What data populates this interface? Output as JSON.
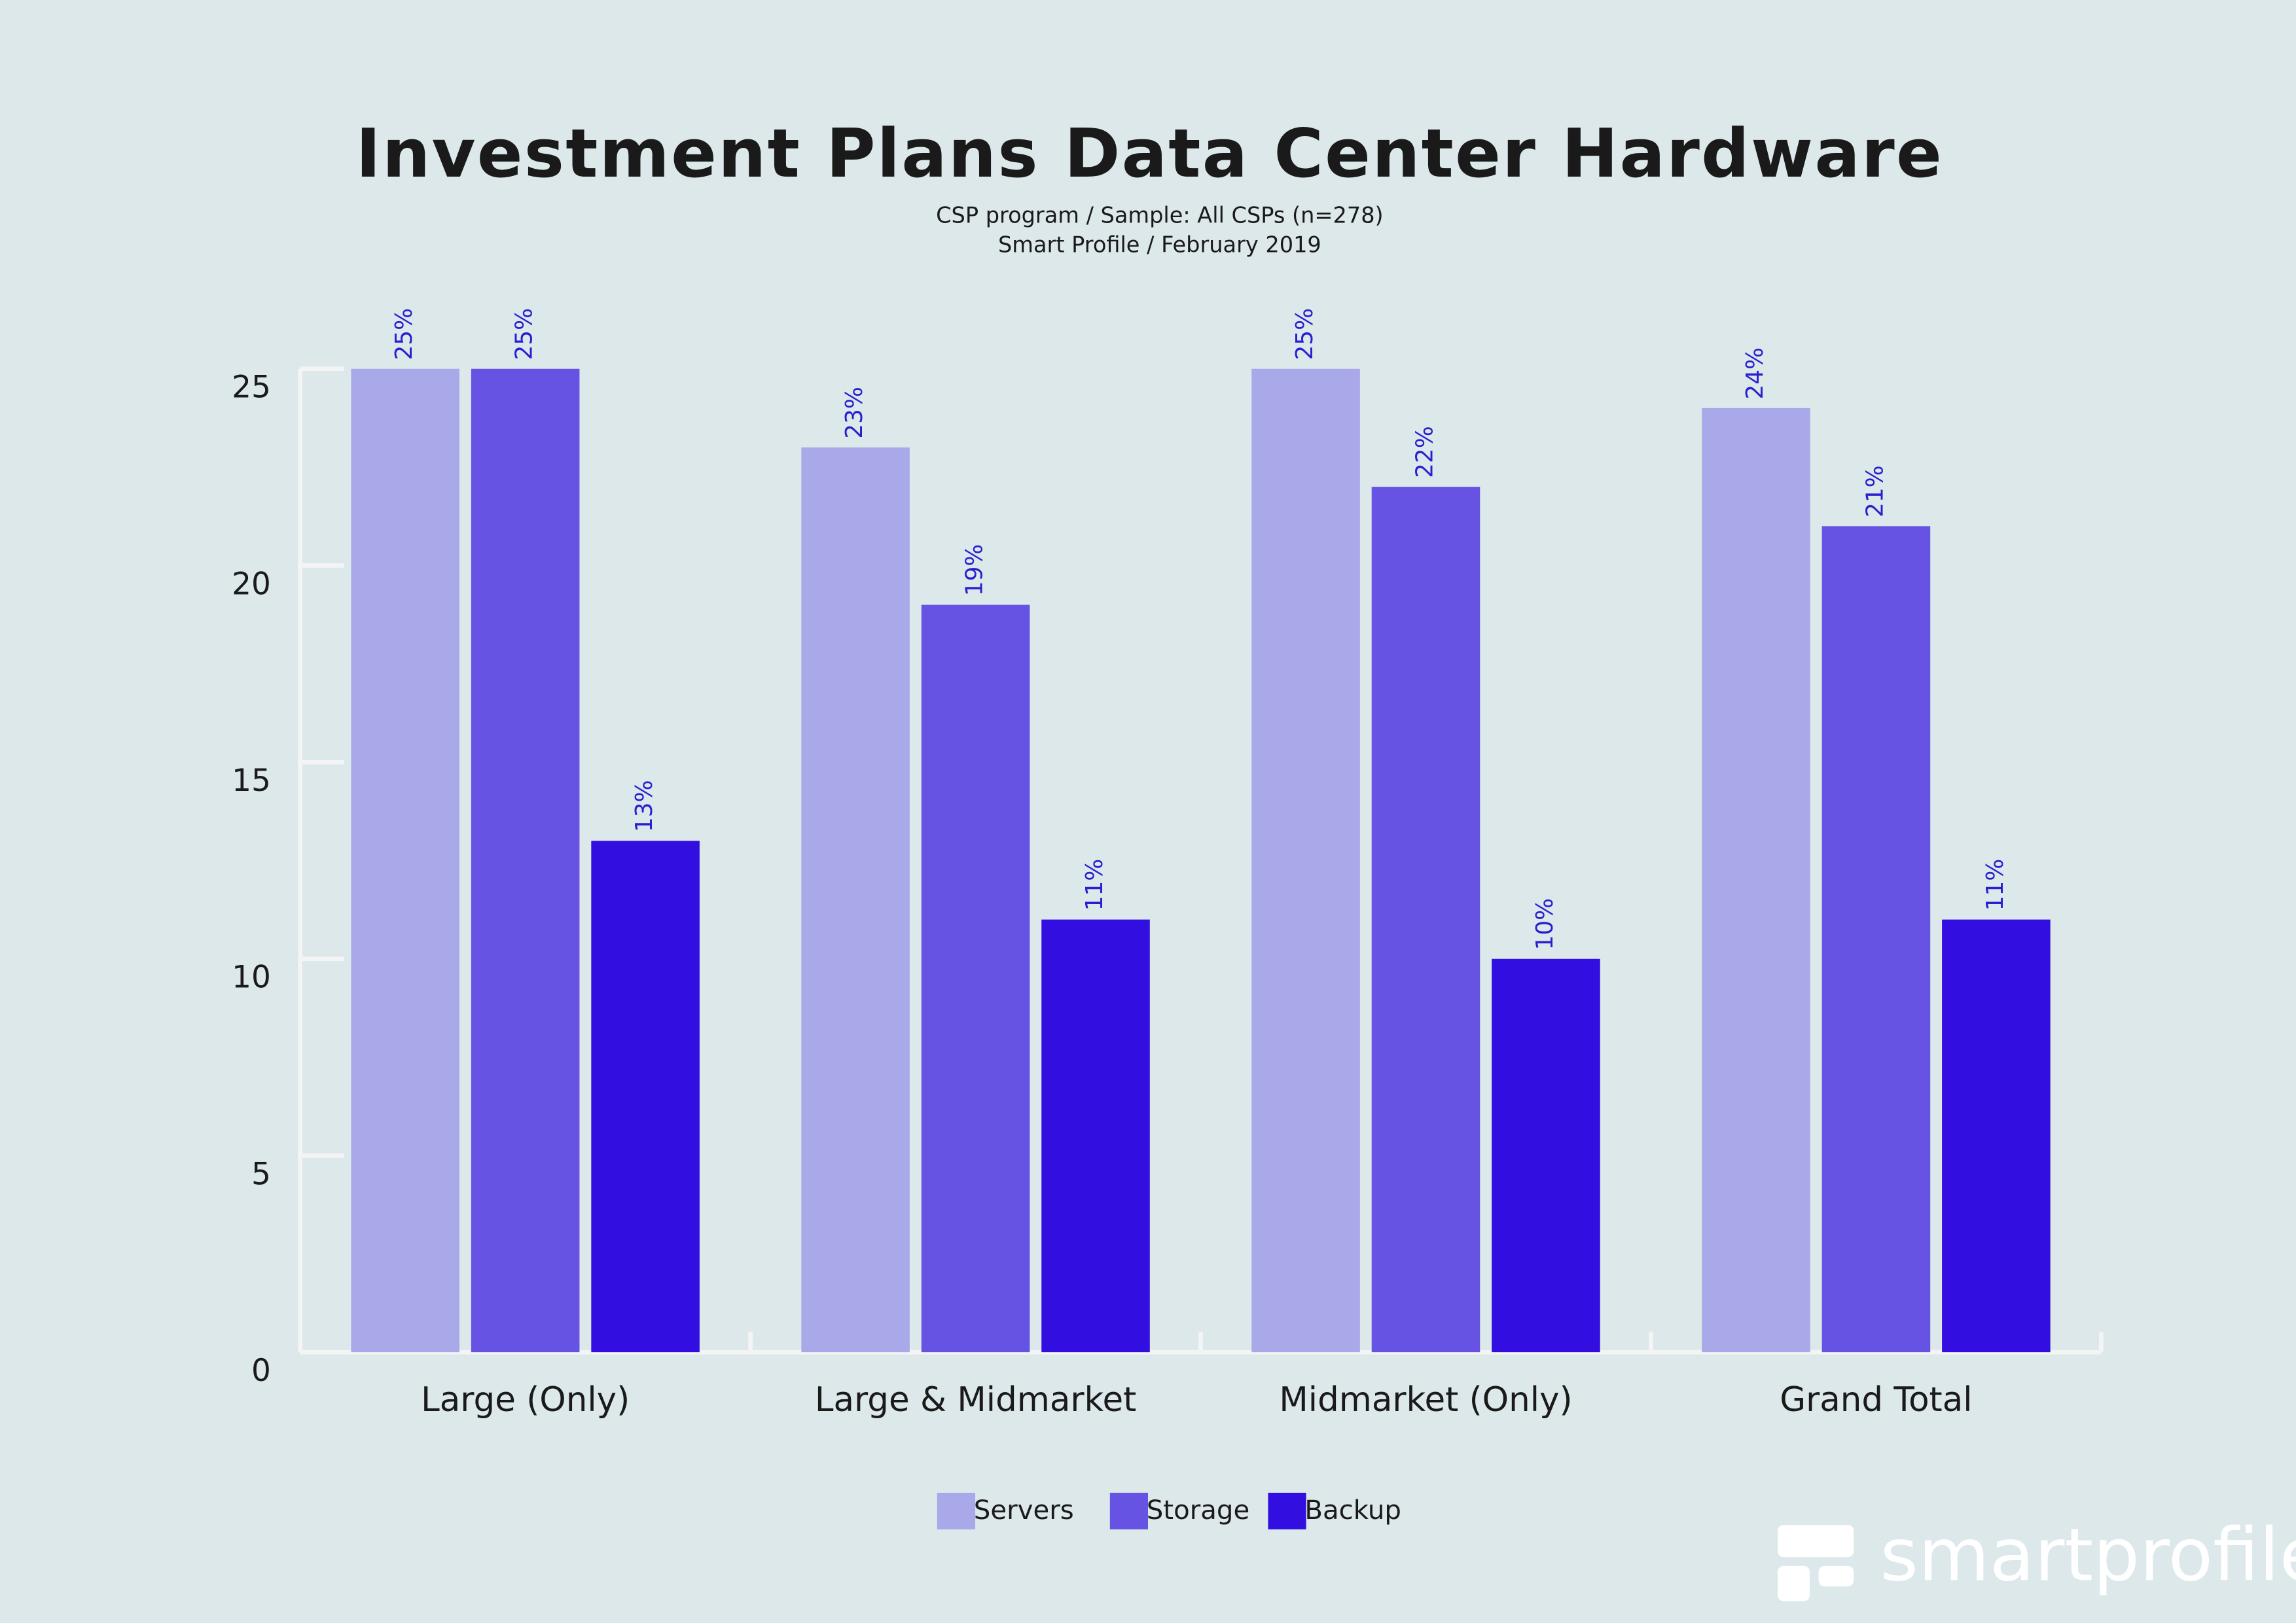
{
  "chart_data": {
    "type": "bar",
    "title": "Investment Plans Data Center Hardware",
    "subtitle": [
      "CSP program / Sample: All CSPs (n=278)",
      "Smart Profile / February 2019"
    ],
    "categories": [
      "Large (Only)",
      "Large & Midmarket",
      "Midmarket (Only)",
      "Grand Total"
    ],
    "series": [
      {
        "name": "Servers",
        "color": "#a9a8e8",
        "values": [
          25,
          23,
          25,
          24
        ],
        "value_labels": [
          "25%",
          "23%",
          "25%",
          "24%"
        ]
      },
      {
        "name": "Storage",
        "color": "#6653e3",
        "values": [
          25,
          19,
          22,
          21
        ],
        "value_labels": [
          "25%",
          "19%",
          "22%",
          "21%"
        ]
      },
      {
        "name": "Backup",
        "color": "#320fe0",
        "values": [
          13,
          11,
          10,
          11
        ],
        "value_labels": [
          "13%",
          "11%",
          "10%",
          "11%"
        ]
      }
    ],
    "ylim": [
      0,
      25
    ],
    "yticks": [
      0,
      5,
      10,
      15,
      20,
      25
    ],
    "grid": false,
    "legend": "bottom",
    "value_label_color": "#2a1fd0"
  },
  "logo_text": "smartprofile"
}
